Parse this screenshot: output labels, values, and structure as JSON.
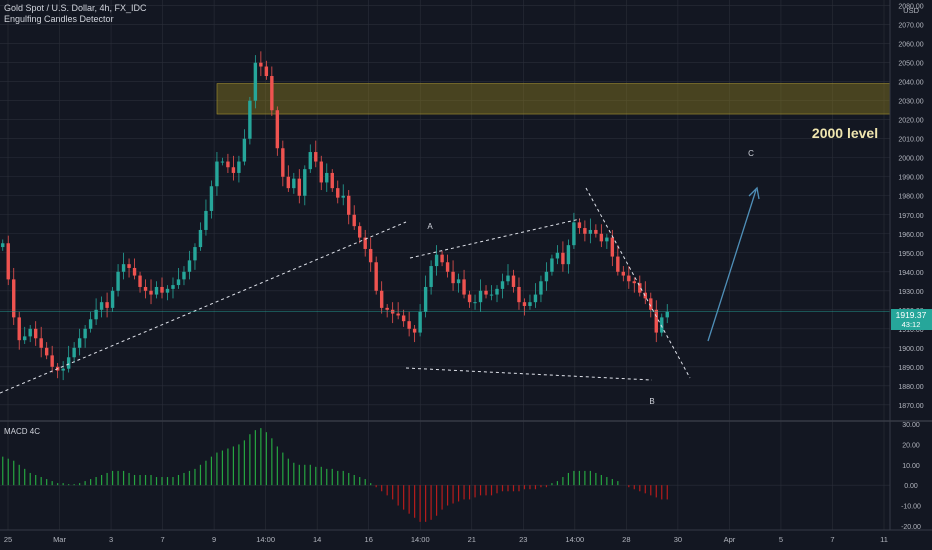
{
  "header": {
    "symbol_title": "Gold Spot / U.S. Dollar, 4h, FX_IDC",
    "indicator_name": "Engulfing Candles Detector"
  },
  "price_axis": {
    "currency": "USD",
    "last_price_label": "1919.37",
    "countdown_label": "43:12"
  },
  "annotations": {
    "level_text": "2000 level",
    "wave_a": "A",
    "wave_b": "B",
    "wave_c": "C"
  },
  "macd_panel": {
    "title": "MACD 4C"
  },
  "colors": {
    "background": "#131722",
    "bull": "#26a69a",
    "bear": "#ef5350",
    "macd_up": "#26a641",
    "macd_down": "#b71c1c",
    "zone": "#8a7a1e",
    "arrow": "#4f8fb8",
    "level_text": "#f0e6b0"
  },
  "chart_data": [
    {
      "type": "candlestick",
      "title": "Gold Spot / U.S. Dollar, 4h, FX_IDC",
      "x_tick_labels": [
        "25",
        "Mar",
        "3",
        "7",
        "9",
        "14:00",
        "14",
        "16",
        "14:00",
        "21",
        "23",
        "14:00",
        "28",
        "30",
        "Apr",
        "5",
        "7",
        "11"
      ],
      "y_ticks": [
        1870,
        1880,
        1890,
        1900,
        1910,
        1920,
        1930,
        1940,
        1950,
        1960,
        1970,
        1980,
        1990,
        2000,
        2010,
        2020,
        2030,
        2040,
        2050,
        2060,
        2070,
        2080
      ],
      "ylim": [
        1862,
        2083
      ],
      "resistance_zone": [
        2023,
        2039
      ],
      "close_series": [
        1955,
        1936,
        1916,
        1904,
        1906,
        1910,
        1905,
        1900,
        1896,
        1890,
        1888,
        1889,
        1895,
        1900,
        1905,
        1910,
        1915,
        1920,
        1924,
        1921,
        1930,
        1940,
        1944,
        1942,
        1938,
        1932,
        1930,
        1928,
        1932,
        1929,
        1931,
        1933,
        1936,
        1940,
        1946,
        1953,
        1962,
        1972,
        1985,
        1998,
        1998,
        1995,
        1992,
        1998,
        2010,
        2030,
        2050,
        2048,
        2043,
        2025,
        2005,
        1990,
        1984,
        1989,
        1980,
        1994,
        2003,
        1998,
        1987,
        1992,
        1984,
        1979,
        1980,
        1970,
        1964,
        1958,
        1952,
        1945,
        1930,
        1921,
        1920,
        1918,
        1917,
        1914,
        1910,
        1908,
        1919,
        1932,
        1943,
        1949,
        1945,
        1940,
        1934,
        1936,
        1928,
        1924,
        1924,
        1930,
        1928,
        1928,
        1931,
        1935,
        1938,
        1932,
        1924,
        1922,
        1924,
        1928,
        1935,
        1940,
        1947,
        1950,
        1944,
        1954,
        1966,
        1963,
        1960,
        1962,
        1960,
        1956,
        1958,
        1948,
        1940,
        1938,
        1935,
        1934,
        1929,
        1926,
        1920,
        1908,
        1916,
        1919
      ]
    },
    {
      "type": "histogram",
      "title": "MACD 4C",
      "y_ticks": [
        -20,
        -10,
        0,
        10,
        20,
        30
      ],
      "ylim": [
        -22,
        31
      ],
      "values": [
        14,
        13,
        12,
        10,
        8,
        6,
        5,
        4,
        3,
        2,
        1,
        1,
        0.5,
        0.5,
        1,
        2,
        3,
        4,
        5,
        6,
        7,
        7,
        7,
        6,
        5,
        5,
        5,
        5,
        4,
        4,
        4,
        4,
        5,
        6,
        7,
        8,
        10,
        12,
        14,
        16,
        17,
        18,
        19,
        20,
        22,
        25,
        27,
        28,
        26,
        23,
        19,
        16,
        13,
        11,
        10,
        10,
        10,
        9,
        9,
        8,
        8,
        7,
        7,
        6,
        5,
        4,
        3,
        1,
        -1,
        -3,
        -5,
        -7,
        -10,
        -12,
        -14,
        -16,
        -18,
        -18,
        -17,
        -15,
        -12,
        -10,
        -9,
        -8,
        -7,
        -7,
        -6,
        -5,
        -5,
        -5,
        -4,
        -3,
        -3,
        -3,
        -3,
        -2,
        -2,
        -2,
        -1,
        -1,
        1,
        2,
        4,
        6,
        7,
        7,
        7,
        7,
        6,
        5,
        4,
        3,
        2,
        0,
        -1,
        -2,
        -3,
        -4,
        -5,
        -6,
        -7,
        -7
      ]
    }
  ]
}
